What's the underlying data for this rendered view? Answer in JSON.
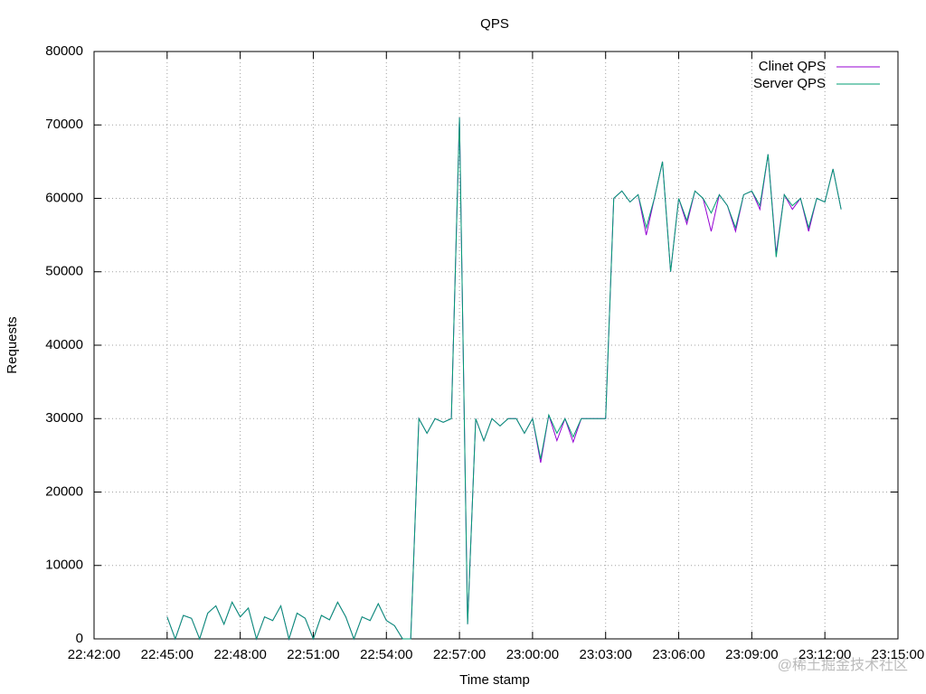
{
  "chart_data": {
    "type": "line",
    "title": "QPS",
    "xlabel": "Time stamp",
    "ylabel": "Requests",
    "watermark": "@稀土掘金技术社区",
    "grid": true,
    "legend": "top-right",
    "xlim": [
      "22:42:00",
      "23:15:00"
    ],
    "xticks": [
      "22:42:00",
      "22:45:00",
      "22:48:00",
      "22:51:00",
      "22:54:00",
      "22:57:00",
      "23:00:00",
      "23:03:00",
      "23:06:00",
      "23:09:00",
      "23:12:00",
      "23:15:00"
    ],
    "ylim": [
      0,
      80000
    ],
    "yticks": [
      0,
      10000,
      20000,
      30000,
      40000,
      50000,
      60000,
      70000,
      80000
    ],
    "x": [
      "22:45:00",
      "22:45:20",
      "22:45:40",
      "22:46:00",
      "22:46:20",
      "22:46:40",
      "22:47:00",
      "22:47:20",
      "22:47:40",
      "22:48:00",
      "22:48:20",
      "22:48:40",
      "22:49:00",
      "22:49:20",
      "22:49:40",
      "22:50:00",
      "22:50:20",
      "22:50:40",
      "22:51:00",
      "22:51:20",
      "22:51:40",
      "22:52:00",
      "22:52:20",
      "22:52:40",
      "22:53:00",
      "22:53:20",
      "22:53:40",
      "22:54:00",
      "22:54:20",
      "22:54:40",
      "22:55:00",
      "22:55:20",
      "22:55:40",
      "22:56:00",
      "22:56:20",
      "22:56:40",
      "22:57:00",
      "22:57:20",
      "22:57:40",
      "22:58:00",
      "22:58:20",
      "22:58:40",
      "22:59:00",
      "22:59:20",
      "22:59:40",
      "23:00:00",
      "23:00:20",
      "23:00:40",
      "23:01:00",
      "23:01:20",
      "23:01:40",
      "23:02:00",
      "23:02:20",
      "23:02:40",
      "23:03:00",
      "23:03:20",
      "23:03:40",
      "23:04:00",
      "23:04:20",
      "23:04:40",
      "23:05:00",
      "23:05:20",
      "23:05:40",
      "23:06:00",
      "23:06:20",
      "23:06:40",
      "23:07:00",
      "23:07:20",
      "23:07:40",
      "23:08:00",
      "23:08:20",
      "23:08:40",
      "23:09:00",
      "23:09:20",
      "23:09:40",
      "23:10:00",
      "23:10:20",
      "23:10:40",
      "23:11:00",
      "23:11:20",
      "23:11:40",
      "23:12:00",
      "23:12:20",
      "23:12:40"
    ],
    "series": [
      {
        "name": "Clinet QPS",
        "color": "#9400d3",
        "values": [
          3000,
          0,
          3200,
          2800,
          0,
          3500,
          4500,
          2000,
          5000,
          3000,
          4200,
          0,
          3000,
          2500,
          4500,
          0,
          3500,
          2800,
          0,
          3200,
          2600,
          5000,
          3000,
          0,
          3000,
          2500,
          4800,
          2500,
          1800,
          0,
          0,
          30000,
          28000,
          30000,
          29500,
          30000,
          71000,
          2000,
          30000,
          27000,
          30000,
          29000,
          30000,
          30000,
          28000,
          30000,
          24000,
          30500,
          27000,
          30000,
          26800,
          30000,
          30000,
          30000,
          30000,
          60000,
          61000,
          59500,
          60500,
          55000,
          60000,
          65000,
          50000,
          60000,
          56500,
          61000,
          60000,
          55500,
          60500,
          59000,
          55500,
          60500,
          61000,
          58500,
          66000,
          52500,
          60500,
          58500,
          60000,
          55500,
          60000,
          59500,
          64000,
          58500
        ]
      },
      {
        "name": "Server QPS",
        "color": "#009e73",
        "values": [
          3000,
          0,
          3200,
          2800,
          0,
          3500,
          4500,
          2000,
          5000,
          3000,
          4200,
          0,
          3000,
          2500,
          4500,
          0,
          3500,
          2800,
          0,
          3200,
          2600,
          5000,
          3000,
          0,
          3000,
          2500,
          4800,
          2500,
          1800,
          0,
          0,
          30000,
          28000,
          30000,
          29500,
          30000,
          71000,
          2000,
          30000,
          27000,
          30000,
          29000,
          30000,
          30000,
          28000,
          30000,
          24500,
          30500,
          28000,
          30000,
          27500,
          30000,
          30000,
          30000,
          30000,
          60000,
          61000,
          59500,
          60500,
          56000,
          60000,
          65000,
          50000,
          60000,
          57000,
          61000,
          60000,
          58000,
          60500,
          59000,
          56000,
          60500,
          61000,
          59000,
          66000,
          52000,
          60500,
          59000,
          60000,
          56000,
          60000,
          59500,
          64000,
          58500
        ]
      }
    ]
  }
}
